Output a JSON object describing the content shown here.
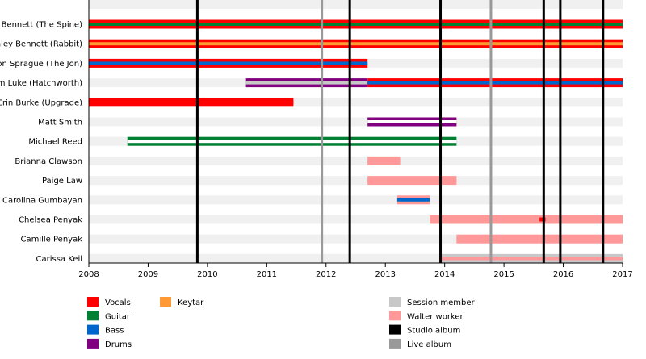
{
  "chart_data": {
    "type": "timeline",
    "xlim": [
      2008,
      2017
    ],
    "x_ticks": [
      2008,
      2009,
      2010,
      2011,
      2012,
      2013,
      2014,
      2015,
      2016,
      2017
    ],
    "roles": {
      "Vocals": "#ff0000",
      "Guitar": "#008033",
      "Bass": "#0066cc",
      "Drums": "#800080",
      "Keytar": "#ff9933",
      "Session member": "#c8c8c8",
      "Walter worker": "#ff9999",
      "Studio album": "#000000",
      "Live album": "#999999"
    },
    "members": [
      {
        "name": "David Bennett (The Spine)",
        "bars": [
          {
            "start": 2008,
            "end": 2017,
            "outer": "Vocals",
            "inner": "Guitar"
          }
        ]
      },
      {
        "name": "Ashley Bennett (Rabbit)",
        "bars": [
          {
            "start": 2008,
            "end": 2017,
            "outer": "Vocals",
            "inner": "Keytar"
          }
        ]
      },
      {
        "name": "Jon Sprague (The Jon)",
        "bars": [
          {
            "start": 2008,
            "end": 2012.7,
            "outer": "Vocals",
            "inner": "Bass"
          }
        ]
      },
      {
        "name": "Adam Luke (Hatchworth)",
        "bars": [
          {
            "start": 2010.65,
            "end": 2012.7,
            "outer": "Drums",
            "inner": "Session member"
          },
          {
            "start": 2012.7,
            "end": 2017,
            "outer": "Vocals",
            "inner": "Bass"
          }
        ]
      },
      {
        "name": "Erin Burke (Upgrade)",
        "bars": [
          {
            "start": 2008,
            "end": 2011.45,
            "outer": "Vocals",
            "inner": "Vocals"
          }
        ]
      },
      {
        "name": "Matt Smith",
        "bars": [
          {
            "start": 2012.7,
            "end": 2014.2,
            "outer": "Drums",
            "inner": "none"
          }
        ]
      },
      {
        "name": "Michael Reed",
        "bars": [
          {
            "start": 2008.65,
            "end": 2014.2,
            "outer": "Guitar",
            "inner": "none"
          }
        ]
      },
      {
        "name": "Brianna Clawson",
        "bars": [
          {
            "start": 2012.7,
            "end": 2013.25,
            "outer": "Walter worker",
            "inner": "Walter worker"
          }
        ]
      },
      {
        "name": "Paige Law",
        "bars": [
          {
            "start": 2012.7,
            "end": 2014.2,
            "outer": "Walter worker",
            "inner": "Walter worker"
          }
        ]
      },
      {
        "name": "Carolina Gumbayan",
        "bars": [
          {
            "start": 2013.2,
            "end": 2013.75,
            "outer": "Walter worker",
            "inner": "Bass"
          }
        ]
      },
      {
        "name": "Chelsea Penyak",
        "bars": [
          {
            "start": 2013.75,
            "end": 2017,
            "outer": "Walter worker",
            "inner": "Walter worker"
          },
          {
            "start": 2015.6,
            "end": 2015.7,
            "outer": "none",
            "inner": "Vocals"
          }
        ]
      },
      {
        "name": "Camille Penyak",
        "bars": [
          {
            "start": 2014.2,
            "end": 2017,
            "outer": "Walter worker",
            "inner": "Walter worker"
          }
        ]
      },
      {
        "name": "Carissa Keil",
        "bars": [
          {
            "start": 2013.95,
            "end": 2017,
            "outer": "Session member",
            "inner": "Walter worker"
          }
        ]
      }
    ],
    "studio_albums": [
      2009.83,
      2012.4,
      2013.93,
      2015.67,
      2015.95,
      2016.67
    ],
    "live_albums": [
      2011.93,
      2014.78
    ],
    "legend": [
      [
        "Vocals",
        "Guitar",
        "Bass",
        "Drums"
      ],
      [
        "Keytar"
      ],
      [
        "Session member",
        "Walter worker",
        "Studio album",
        "Live album"
      ]
    ]
  }
}
